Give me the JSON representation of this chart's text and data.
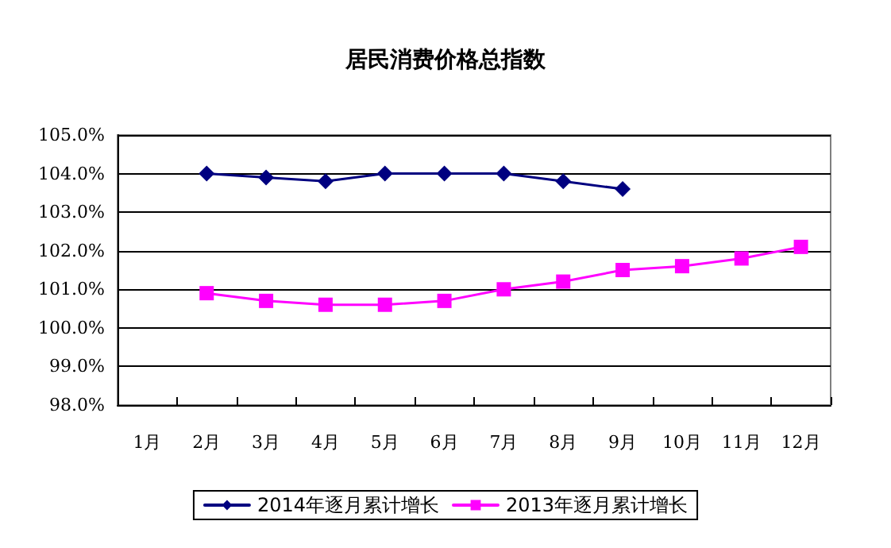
{
  "chart_data": {
    "type": "line",
    "title": "居民消费价格总指数",
    "categories": [
      "1月",
      "2月",
      "3月",
      "4月",
      "5月",
      "6月",
      "7月",
      "8月",
      "9月",
      "10月",
      "11月",
      "12月"
    ],
    "series": [
      {
        "name": "2014年逐月累计增长",
        "color": "#000080",
        "marker": "diamond",
        "values": [
          null,
          104.0,
          103.9,
          103.8,
          104.0,
          104.0,
          104.0,
          103.8,
          103.6,
          null,
          null,
          null
        ]
      },
      {
        "name": "2013年逐月累计增长",
        "color": "#ff00ff",
        "marker": "square",
        "values": [
          null,
          100.9,
          100.7,
          100.6,
          100.6,
          100.7,
          101.0,
          101.2,
          101.5,
          101.6,
          101.8,
          102.1
        ]
      }
    ],
    "ylim": [
      98,
      105
    ],
    "yticks": [
      {
        "value": 98,
        "label": "98.0%"
      },
      {
        "value": 99,
        "label": "99.0%"
      },
      {
        "value": 100,
        "label": "100.0%"
      },
      {
        "value": 101,
        "label": "101.0%"
      },
      {
        "value": 102,
        "label": "102.0%"
      },
      {
        "value": 103,
        "label": "103.0%"
      },
      {
        "value": 104,
        "label": "104.0%"
      },
      {
        "value": 105,
        "label": "105.0%"
      }
    ],
    "grid": "y",
    "legend": "bottom",
    "line_style": "solid"
  }
}
